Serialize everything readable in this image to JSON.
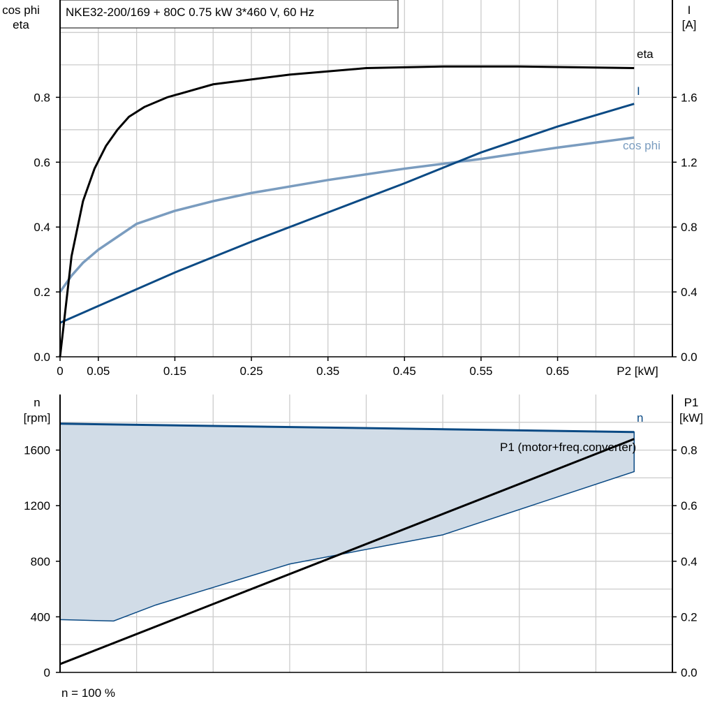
{
  "title": "NKE32-200/169 + 80C   0.75 kW   3*460 V, 60 Hz",
  "footer": "n = 100 %",
  "colors": {
    "eta": "#000000",
    "I": "#0b4a84",
    "cos_phi": "#7a9cbf",
    "n": "#0b4a84",
    "n_fill": "#d1dce7",
    "P1": "#000000",
    "grid": "#cccccc"
  },
  "chart_data": [
    {
      "type": "line",
      "xlabel": "P2 [kW]",
      "x_ticks": [
        "0",
        "0.05",
        "0.15",
        "0.25",
        "0.35",
        "0.45",
        "0.55",
        "0.65"
      ],
      "x_tick_values": [
        0,
        0.05,
        0.15,
        0.25,
        0.35,
        0.45,
        0.55,
        0.65
      ],
      "xlim": [
        0,
        0.8
      ],
      "ylabel_left": [
        "cos phi",
        "eta"
      ],
      "ylim_left": [
        0,
        1.1
      ],
      "y_ticks_left": [
        "0.0",
        "0.2",
        "0.4",
        "0.6",
        "0.8"
      ],
      "ylabel_right": [
        "I",
        "[A]"
      ],
      "ylim_right": [
        0,
        2.2
      ],
      "y_ticks_right": [
        "0.0",
        "0.4",
        "0.8",
        "1.2",
        "1.6"
      ],
      "grid": true,
      "series": [
        {
          "name": "eta",
          "axis": "left",
          "x": [
            0,
            0.015,
            0.03,
            0.045,
            0.06,
            0.075,
            0.09,
            0.11,
            0.14,
            0.2,
            0.3,
            0.4,
            0.5,
            0.6,
            0.75
          ],
          "y": [
            0,
            0.31,
            0.48,
            0.58,
            0.65,
            0.7,
            0.74,
            0.77,
            0.8,
            0.84,
            0.87,
            0.89,
            0.895,
            0.895,
            0.89
          ]
        },
        {
          "name": "I",
          "axis": "right",
          "x": [
            0,
            0.15,
            0.25,
            0.35,
            0.45,
            0.55,
            0.65,
            0.75
          ],
          "y": [
            0.21,
            0.52,
            0.71,
            0.89,
            1.07,
            1.26,
            1.42,
            1.56
          ]
        },
        {
          "name": "cos phi",
          "axis": "left",
          "x": [
            0,
            0.015,
            0.03,
            0.05,
            0.075,
            0.1,
            0.15,
            0.2,
            0.25,
            0.35,
            0.45,
            0.55,
            0.65,
            0.75
          ],
          "y": [
            0.2,
            0.25,
            0.29,
            0.33,
            0.37,
            0.41,
            0.45,
            0.48,
            0.505,
            0.545,
            0.58,
            0.61,
            0.645,
            0.676
          ]
        }
      ]
    },
    {
      "type": "line",
      "xlim": [
        0,
        0.8
      ],
      "ylabel_left": [
        "n",
        "[rpm]"
      ],
      "ylim_left": [
        0,
        2000
      ],
      "y_ticks_left": [
        "0",
        "400",
        "800",
        "1200",
        "1600"
      ],
      "ylabel_right": [
        "P1",
        "[kW]"
      ],
      "ylim_right": [
        0,
        1.0
      ],
      "y_ticks_right": [
        "0.0",
        "0.2",
        "0.4",
        "0.6",
        "0.8"
      ],
      "grid": true,
      "series": [
        {
          "name": "n",
          "axis": "left",
          "x": [
            0,
            0.75
          ],
          "y": [
            1790,
            1730
          ]
        },
        {
          "name": "n_lower",
          "axis": "left",
          "x": [
            0,
            0.07,
            0.125,
            0.3,
            0.5,
            0.75
          ],
          "y": [
            380,
            370,
            485,
            780,
            990,
            1445
          ]
        },
        {
          "name": "P1 (motor+freq.converter)",
          "axis": "right",
          "x": [
            0,
            0.75
          ],
          "y": [
            0.03,
            0.84
          ]
        }
      ]
    }
  ]
}
